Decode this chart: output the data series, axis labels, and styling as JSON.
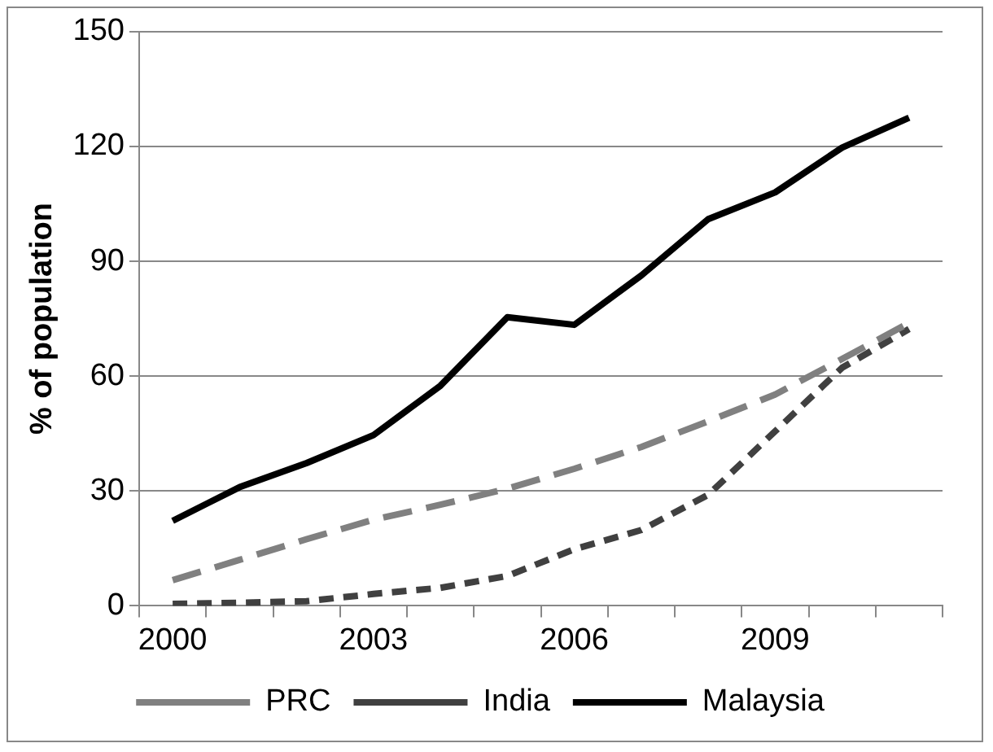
{
  "chart_data": {
    "type": "line",
    "ylabel": "% of population",
    "categories": [
      "2000",
      null,
      null,
      "2003",
      null,
      null,
      "2006",
      null,
      null,
      "2009",
      null,
      null
    ],
    "series": [
      {
        "name": "PRC",
        "color": "#808080",
        "line_style": "dashed",
        "values": [
          6.7,
          12,
          17.4,
          22.5,
          26.4,
          30.6,
          35.8,
          41.5,
          48.2,
          55.2,
          64.5,
          73.9
        ]
      },
      {
        "name": "India",
        "color": "#404040",
        "line_style": "dotted",
        "values": [
          0.5,
          0.8,
          1.2,
          3.1,
          4.7,
          7.8,
          14.8,
          19.8,
          29,
          45.6,
          62.2,
          72.3
        ]
      },
      {
        "name": "Malaysia",
        "color": "#000000",
        "line_style": "solid",
        "values": [
          22.2,
          31,
          37.3,
          44.6,
          57.5,
          75.4,
          73.4,
          86.3,
          101,
          108,
          119.7,
          127.5
        ]
      }
    ],
    "ylim": [
      0,
      150
    ],
    "yticks": [
      0,
      30,
      60,
      90,
      120,
      150
    ],
    "grid": "y",
    "legend": "bottom",
    "marker": "none"
  }
}
